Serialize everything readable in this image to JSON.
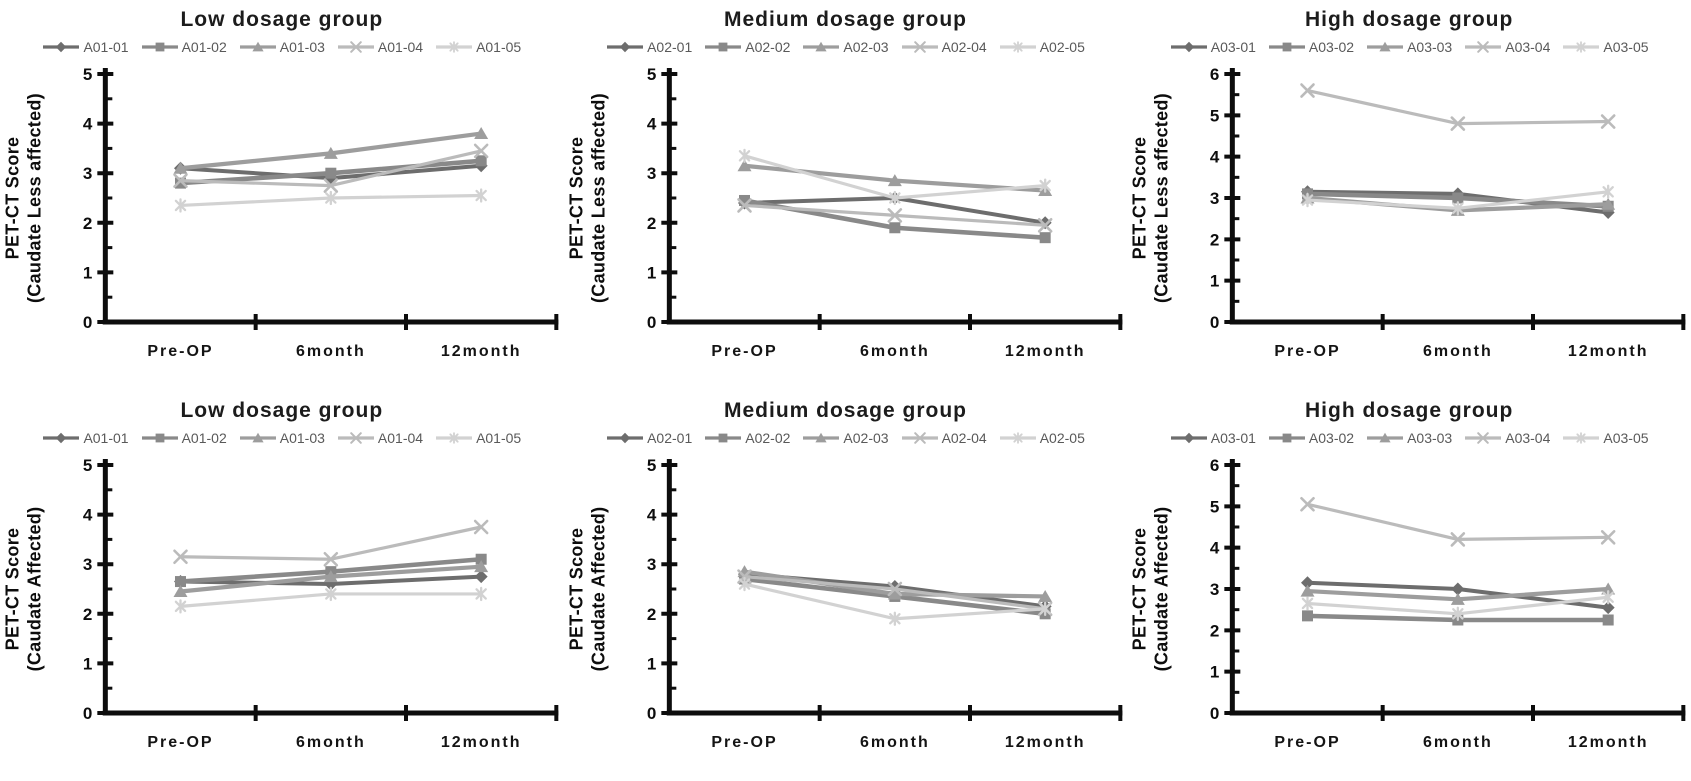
{
  "page": {
    "background_color": "#ffffff"
  },
  "style": {
    "series_colors": [
      "#6d6d6d",
      "#898989",
      "#9d9d9d",
      "#bbbbbb",
      "#d2d2d2"
    ],
    "series_line_widths": [
      4,
      4.6,
      4.2,
      3.2,
      3.2
    ],
    "title_color": "#1c1c1c",
    "legend_text_color": "#595959",
    "axis_color": "#0d0d0d"
  },
  "chart_data": [
    {
      "id": "low-dosage-less-affected",
      "type": "line",
      "title": "Low dosage group",
      "ylabel_lines": [
        "PET-CT Score",
        "(Caudate Less affected)"
      ],
      "categories": [
        "Pre-OP",
        "6month",
        "12month"
      ],
      "ylim": [
        0,
        5
      ],
      "yticks": [
        0,
        1,
        2,
        3,
        4,
        5
      ],
      "grid": false,
      "legend_position": "top",
      "series": [
        {
          "name": "A01-01",
          "marker": "diamond",
          "values": [
            3.1,
            2.9,
            3.15
          ]
        },
        {
          "name": "A01-02",
          "marker": "square",
          "values": [
            2.8,
            3.0,
            3.25
          ]
        },
        {
          "name": "A01-03",
          "marker": "triangle",
          "values": [
            3.1,
            3.4,
            3.8
          ]
        },
        {
          "name": "A01-04",
          "marker": "x",
          "values": [
            2.85,
            2.75,
            3.45
          ]
        },
        {
          "name": "A01-05",
          "marker": "asterisk",
          "values": [
            2.35,
            2.5,
            2.55
          ]
        }
      ]
    },
    {
      "id": "medium-dosage-less-affected",
      "type": "line",
      "title": "Medium dosage group",
      "ylabel_lines": [
        "PET-CT Score",
        "(Caudate Less affected)"
      ],
      "categories": [
        "Pre-OP",
        "6month",
        "12month"
      ],
      "ylim": [
        0,
        5
      ],
      "yticks": [
        0,
        1,
        2,
        3,
        4,
        5
      ],
      "grid": false,
      "legend_position": "top",
      "series": [
        {
          "name": "A02-01",
          "marker": "diamond",
          "values": [
            2.4,
            2.5,
            2.0
          ]
        },
        {
          "name": "A02-02",
          "marker": "square",
          "values": [
            2.45,
            1.9,
            1.7
          ]
        },
        {
          "name": "A02-03",
          "marker": "triangle",
          "values": [
            3.15,
            2.85,
            2.65
          ]
        },
        {
          "name": "A02-04",
          "marker": "x",
          "values": [
            2.35,
            2.15,
            1.95
          ]
        },
        {
          "name": "A02-05",
          "marker": "asterisk",
          "values": [
            3.35,
            2.5,
            2.75
          ]
        }
      ]
    },
    {
      "id": "high-dosage-less-affected",
      "type": "line",
      "title": "High dosage group",
      "ylabel_lines": [
        "PET-CT Score",
        "(Caudate Less affected)"
      ],
      "categories": [
        "Pre-OP",
        "6month",
        "12month"
      ],
      "ylim": [
        0,
        6
      ],
      "yticks": [
        0,
        1,
        2,
        3,
        4,
        5,
        6
      ],
      "grid": false,
      "legend_position": "top",
      "series": [
        {
          "name": "A03-01",
          "marker": "diamond",
          "values": [
            3.15,
            3.1,
            2.65
          ]
        },
        {
          "name": "A03-02",
          "marker": "square",
          "values": [
            3.1,
            3.0,
            2.8
          ]
        },
        {
          "name": "A03-03",
          "marker": "triangle",
          "values": [
            3.0,
            2.7,
            2.85
          ]
        },
        {
          "name": "A03-04",
          "marker": "x",
          "values": [
            5.6,
            4.8,
            4.85
          ]
        },
        {
          "name": "A03-05",
          "marker": "asterisk",
          "values": [
            2.95,
            2.75,
            3.15
          ]
        }
      ]
    },
    {
      "id": "low-dosage-affected",
      "type": "line",
      "title": "Low dosage group",
      "ylabel_lines": [
        "PET-CT Score",
        "(Caudate Affected)"
      ],
      "categories": [
        "Pre-OP",
        "6month",
        "12month"
      ],
      "ylim": [
        0,
        5
      ],
      "yticks": [
        0,
        1,
        2,
        3,
        4,
        5
      ],
      "grid": false,
      "legend_position": "top",
      "series": [
        {
          "name": "A01-01",
          "marker": "diamond",
          "values": [
            2.65,
            2.6,
            2.75
          ]
        },
        {
          "name": "A01-02",
          "marker": "square",
          "values": [
            2.65,
            2.85,
            3.1
          ]
        },
        {
          "name": "A01-03",
          "marker": "triangle",
          "values": [
            2.45,
            2.75,
            2.95
          ]
        },
        {
          "name": "A01-04",
          "marker": "x",
          "values": [
            3.15,
            3.1,
            3.75
          ]
        },
        {
          "name": "A01-05",
          "marker": "asterisk",
          "values": [
            2.15,
            2.4,
            2.4
          ]
        }
      ]
    },
    {
      "id": "medium-dosage-affected",
      "type": "line",
      "title": "Medium dosage group",
      "ylabel_lines": [
        "PET-CT Score",
        "(Caudate Affected)"
      ],
      "categories": [
        "Pre-OP",
        "6month",
        "12month"
      ],
      "ylim": [
        0,
        5
      ],
      "yticks": [
        0,
        1,
        2,
        3,
        4,
        5
      ],
      "grid": false,
      "legend_position": "top",
      "series": [
        {
          "name": "A02-01",
          "marker": "diamond",
          "values": [
            2.8,
            2.55,
            2.15
          ]
        },
        {
          "name": "A02-02",
          "marker": "square",
          "values": [
            2.7,
            2.35,
            2.0
          ]
        },
        {
          "name": "A02-03",
          "marker": "triangle",
          "values": [
            2.85,
            2.4,
            2.35
          ]
        },
        {
          "name": "A02-04",
          "marker": "x",
          "values": [
            2.75,
            2.5,
            2.1
          ]
        },
        {
          "name": "A02-05",
          "marker": "asterisk",
          "values": [
            2.6,
            1.9,
            2.1
          ]
        }
      ]
    },
    {
      "id": "high-dosage-affected",
      "type": "line",
      "title": "High dosage group",
      "ylabel_lines": [
        "PET-CT Score",
        "(Caudate Affected)"
      ],
      "categories": [
        "Pre-OP",
        "6month",
        "12month"
      ],
      "ylim": [
        0,
        6
      ],
      "yticks": [
        0,
        1,
        2,
        3,
        4,
        5,
        6
      ],
      "grid": false,
      "legend_position": "top",
      "series": [
        {
          "name": "A03-01",
          "marker": "diamond",
          "values": [
            3.15,
            3.0,
            2.55
          ]
        },
        {
          "name": "A03-02",
          "marker": "square",
          "values": [
            2.35,
            2.25,
            2.25
          ]
        },
        {
          "name": "A03-03",
          "marker": "triangle",
          "values": [
            2.95,
            2.75,
            3.0
          ]
        },
        {
          "name": "A03-04",
          "marker": "x",
          "values": [
            5.05,
            4.2,
            4.25
          ]
        },
        {
          "name": "A03-05",
          "marker": "asterisk",
          "values": [
            2.65,
            2.4,
            2.8
          ]
        }
      ]
    }
  ]
}
